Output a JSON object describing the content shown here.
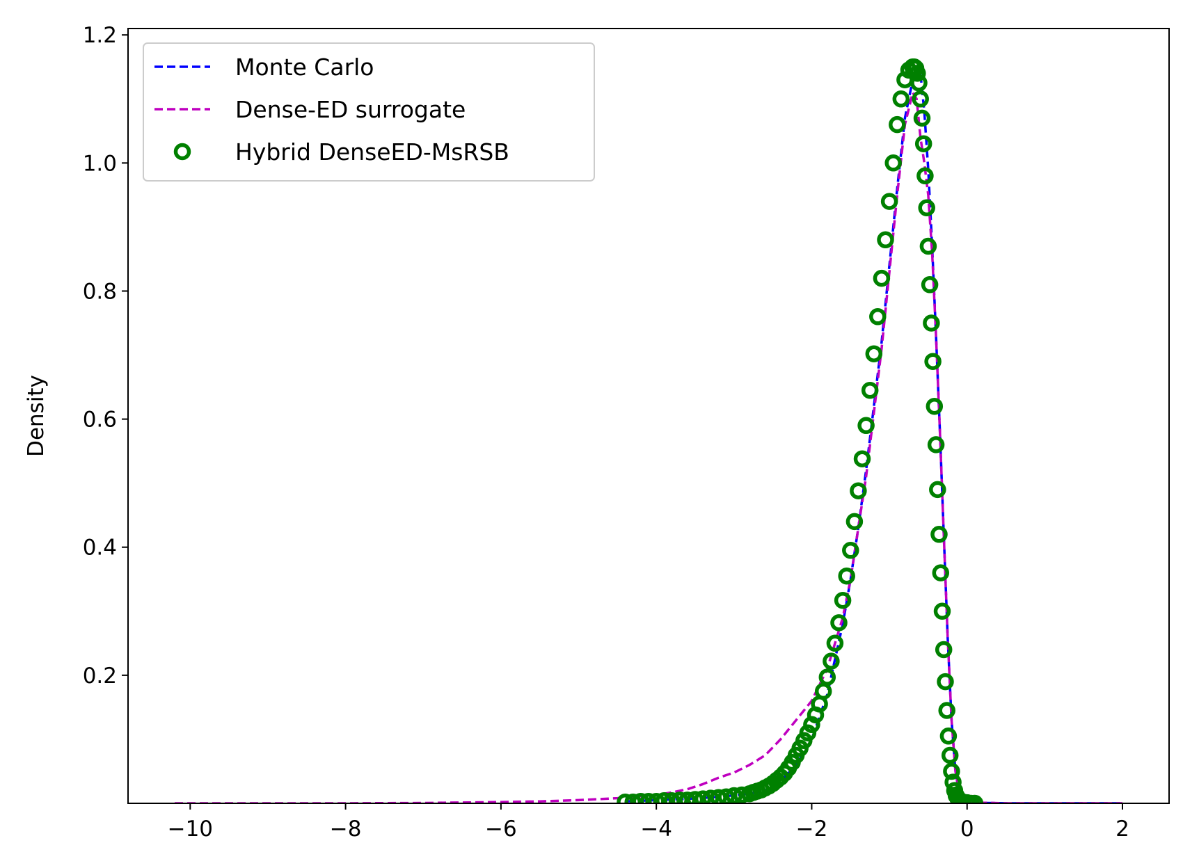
{
  "chart_data": {
    "type": "line",
    "title": "",
    "xlabel": "",
    "ylabel": "Density",
    "xlim": [
      -10.8,
      2.6
    ],
    "ylim": [
      0.0,
      1.21
    ],
    "xticks": [
      -10,
      -8,
      -6,
      -4,
      -2,
      0,
      2
    ],
    "xtick_labels": [
      "−10",
      "−8",
      "−6",
      "−4",
      "−2",
      "0",
      "2"
    ],
    "yticks": [
      0.2,
      0.4,
      0.6,
      0.8,
      1.0,
      1.2
    ],
    "ytick_labels": [
      "0.2",
      "0.4",
      "0.6",
      "0.8",
      "1.0",
      "1.2"
    ],
    "grid": false,
    "legend_position": "top-left",
    "series": [
      {
        "name": "Monte Carlo",
        "style": "dashed",
        "color": "#0000ff",
        "x": [
          -4.4,
          -4.0,
          -3.6,
          -3.2,
          -2.8,
          -2.6,
          -2.4,
          -2.2,
          -2.0,
          -1.8,
          -1.6,
          -1.5,
          -1.4,
          -1.3,
          -1.2,
          -1.1,
          -1.0,
          -0.9,
          -0.8,
          -0.7,
          -0.65,
          -0.6,
          -0.55,
          -0.5,
          -0.45,
          -0.4,
          -0.35,
          -0.3,
          -0.25,
          -0.2,
          -0.15,
          -0.1,
          0.0,
          0.1,
          0.5,
          1.0,
          2.0
        ],
        "y": [
          0.003,
          0.005,
          0.007,
          0.01,
          0.015,
          0.02,
          0.035,
          0.06,
          0.1,
          0.17,
          0.28,
          0.35,
          0.43,
          0.52,
          0.62,
          0.72,
          0.84,
          0.96,
          1.07,
          1.13,
          1.15,
          1.14,
          1.08,
          0.99,
          0.87,
          0.73,
          0.58,
          0.42,
          0.26,
          0.13,
          0.05,
          0.015,
          0.003,
          0.001,
          0.0,
          0.0,
          0.0
        ]
      },
      {
        "name": "Dense-ED surrogate",
        "style": "dashed",
        "color": "#bf00bf",
        "x": [
          -10.2,
          -9.0,
          -8.0,
          -7.0,
          -6.0,
          -5.5,
          -5.0,
          -4.5,
          -4.0,
          -3.8,
          -3.6,
          -3.4,
          -3.2,
          -3.0,
          -2.8,
          -2.6,
          -2.4,
          -2.2,
          -2.0,
          -1.8,
          -1.6,
          -1.5,
          -1.4,
          -1.3,
          -1.2,
          -1.1,
          -1.0,
          -0.9,
          -0.8,
          -0.7,
          -0.65,
          -0.6,
          -0.55,
          -0.5,
          -0.45,
          -0.4,
          -0.35,
          -0.3,
          -0.25,
          -0.2,
          -0.15,
          -0.1,
          0.0,
          0.2,
          0.5,
          1.0,
          1.5,
          2.0
        ],
        "y": [
          0.0,
          0.0,
          0.0,
          0.0005,
          0.002,
          0.003,
          0.005,
          0.008,
          0.013,
          0.017,
          0.022,
          0.03,
          0.04,
          0.048,
          0.06,
          0.075,
          0.1,
          0.13,
          0.16,
          0.21,
          0.29,
          0.35,
          0.43,
          0.51,
          0.61,
          0.71,
          0.83,
          0.95,
          1.06,
          1.11,
          1.1,
          1.04,
          1.0,
          0.95,
          0.86,
          0.73,
          0.58,
          0.42,
          0.26,
          0.13,
          0.05,
          0.015,
          0.003,
          0.001,
          0.0,
          0.0,
          0.0,
          0.0
        ]
      },
      {
        "name": "Hybrid DenseED-MsRSB",
        "style": "circles",
        "color": "#008000",
        "x": [
          -4.4,
          -4.3,
          -4.2,
          -4.1,
          -4.0,
          -3.9,
          -3.8,
          -3.7,
          -3.6,
          -3.5,
          -3.4,
          -3.3,
          -3.2,
          -3.1,
          -3.0,
          -2.9,
          -2.8,
          -2.75,
          -2.7,
          -2.65,
          -2.6,
          -2.55,
          -2.5,
          -2.45,
          -2.4,
          -2.35,
          -2.3,
          -2.25,
          -2.2,
          -2.15,
          -2.1,
          -2.05,
          -2.0,
          -1.95,
          -1.9,
          -1.85,
          -1.8,
          -1.75,
          -1.7,
          -1.65,
          -1.6,
          -1.55,
          -1.5,
          -1.45,
          -1.4,
          -1.35,
          -1.3,
          -1.25,
          -1.2,
          -1.15,
          -1.1,
          -1.05,
          -1.0,
          -0.95,
          -0.9,
          -0.85,
          -0.8,
          -0.75,
          -0.7,
          -0.68,
          -0.66,
          -0.64,
          -0.62,
          -0.6,
          -0.58,
          -0.56,
          -0.54,
          -0.52,
          -0.5,
          -0.48,
          -0.46,
          -0.44,
          -0.42,
          -0.4,
          -0.38,
          -0.36,
          -0.34,
          -0.32,
          -0.3,
          -0.28,
          -0.26,
          -0.24,
          -0.22,
          -0.2,
          -0.18,
          -0.16,
          -0.14,
          -0.12,
          -0.1,
          -0.08,
          -0.05,
          0.0,
          0.05,
          0.1
        ],
        "y": [
          0.002,
          0.002,
          0.003,
          0.003,
          0.003,
          0.004,
          0.004,
          0.005,
          0.005,
          0.006,
          0.007,
          0.008,
          0.009,
          0.01,
          0.012,
          0.013,
          0.015,
          0.017,
          0.019,
          0.021,
          0.024,
          0.027,
          0.031,
          0.036,
          0.041,
          0.047,
          0.055,
          0.064,
          0.075,
          0.086,
          0.098,
          0.11,
          0.123,
          0.138,
          0.155,
          0.175,
          0.197,
          0.222,
          0.25,
          0.282,
          0.317,
          0.355,
          0.395,
          0.44,
          0.488,
          0.538,
          0.59,
          0.645,
          0.702,
          0.76,
          0.82,
          0.88,
          0.94,
          1.0,
          1.06,
          1.1,
          1.13,
          1.145,
          1.15,
          1.15,
          1.148,
          1.14,
          1.125,
          1.1,
          1.07,
          1.03,
          0.98,
          0.93,
          0.87,
          0.81,
          0.75,
          0.69,
          0.62,
          0.56,
          0.49,
          0.42,
          0.36,
          0.3,
          0.24,
          0.19,
          0.145,
          0.105,
          0.075,
          0.05,
          0.033,
          0.02,
          0.012,
          0.008,
          0.005,
          0.003,
          0.002,
          0.001,
          0.0,
          0.0
        ]
      }
    ]
  },
  "legend": {
    "items": [
      {
        "label": "Monte Carlo",
        "marker": "dashed-line",
        "color": "#0000ff"
      },
      {
        "label": "Dense-ED surrogate",
        "marker": "dashed-line",
        "color": "#bf00bf"
      },
      {
        "label": "Hybrid DenseED-MsRSB",
        "marker": "open-circle",
        "color": "#008000"
      }
    ]
  }
}
